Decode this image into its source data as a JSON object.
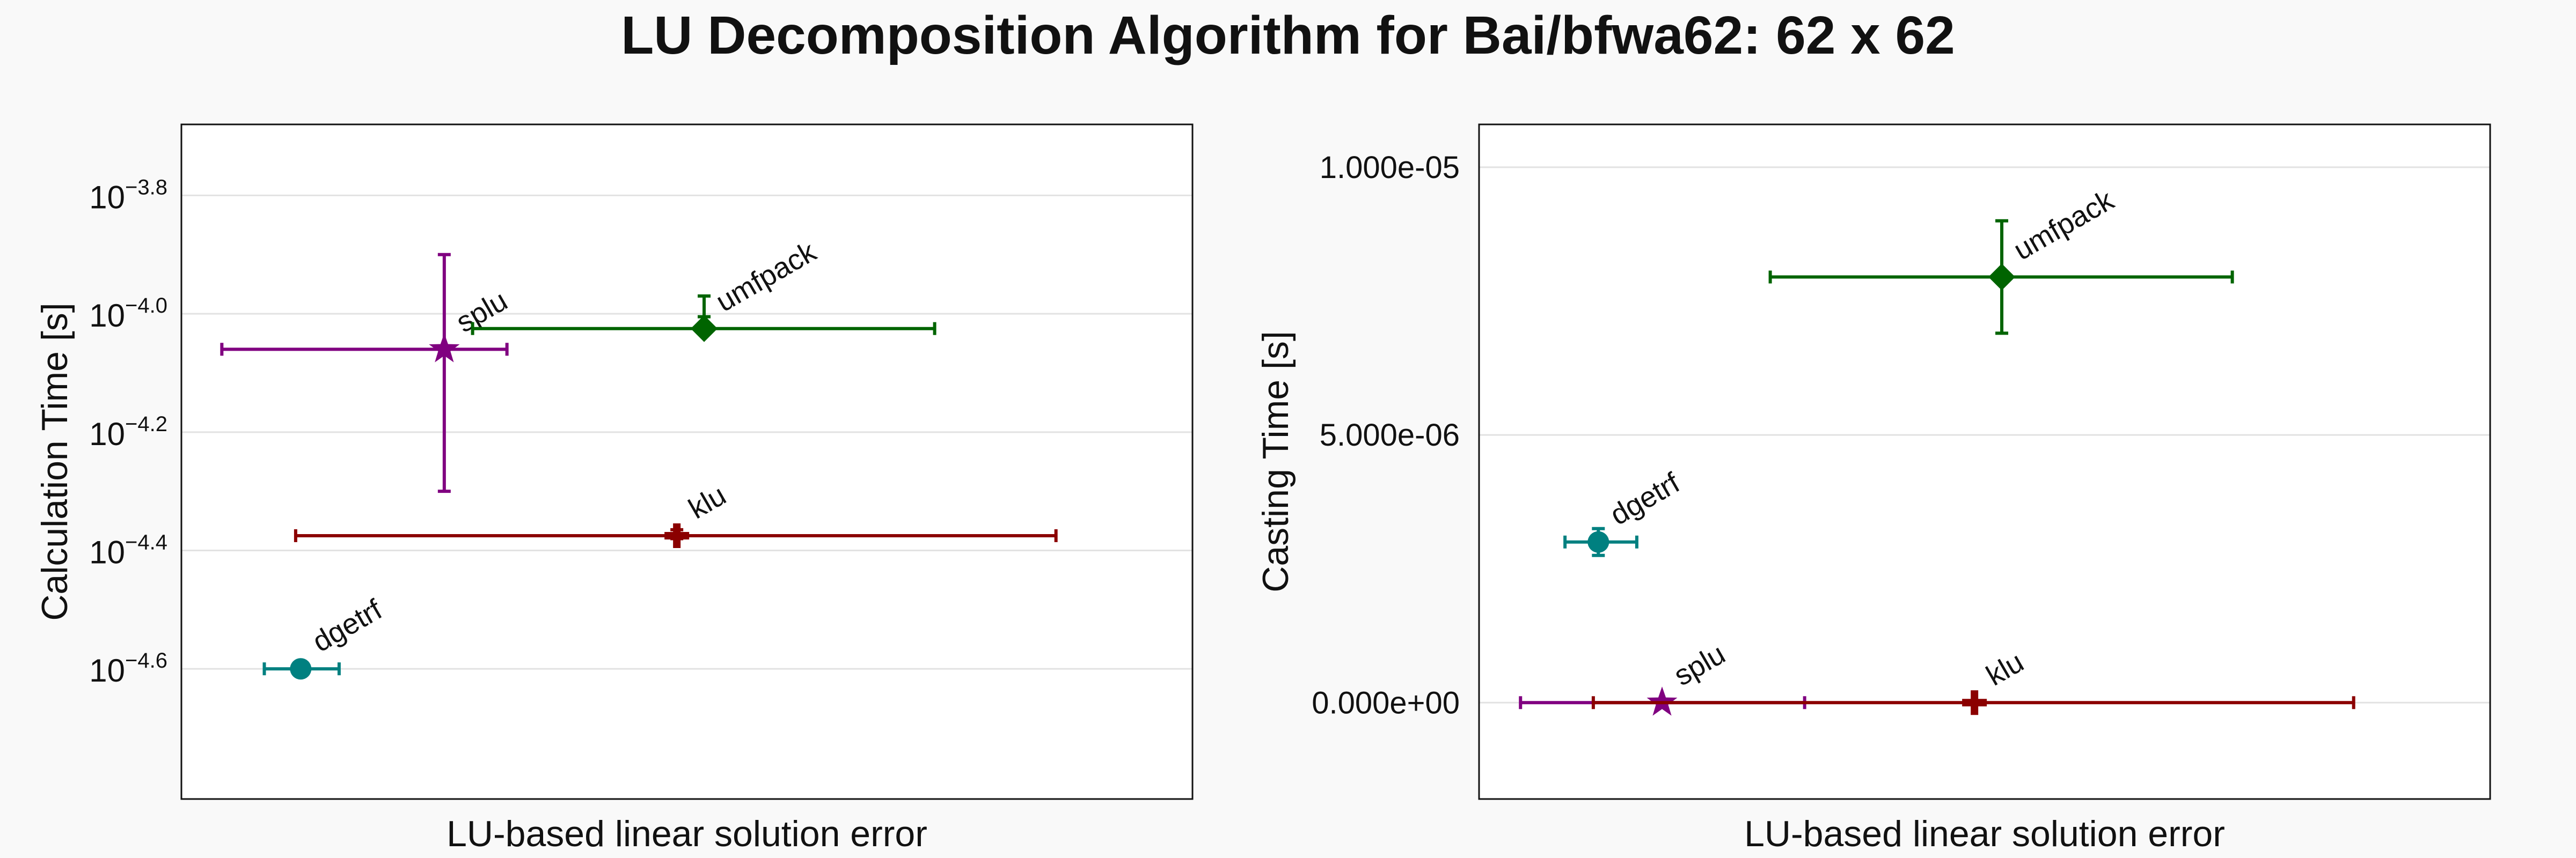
{
  "figure": {
    "title": "LU Decomposition Algorithm for Bai/bfwa62: 62 x 62",
    "background": "#f9f9f9"
  },
  "chart_data": [
    {
      "type": "scatter",
      "title": "",
      "xlabel": "LU-based linear solution error",
      "ylabel": "Calculation Time [s]",
      "y_scale": "log10",
      "ylim_log10": [
        -4.82,
        -3.68
      ],
      "y_ticks": [
        {
          "base": "10",
          "exp": "−3.8",
          "value_log10": -3.8
        },
        {
          "base": "10",
          "exp": "−4.0",
          "value_log10": -4.0
        },
        {
          "base": "10",
          "exp": "−4.2",
          "value_log10": -4.2
        },
        {
          "base": "10",
          "exp": "−4.4",
          "value_log10": -4.4
        },
        {
          "base": "10",
          "exp": "−4.6",
          "value_log10": -4.6
        }
      ],
      "x_ticks_shown": false,
      "xlim": [
        0,
        1
      ],
      "grid": "horizontal",
      "points": [
        {
          "label": "dgetrf",
          "color": "#008080",
          "marker": "circle",
          "x": 0.118,
          "x_err": [
            0.082,
            0.156
          ],
          "y_log10": -4.6,
          "y_err_log10": [
            -4.595,
            -4.605
          ]
        },
        {
          "label": "splu",
          "color": "#800080",
          "marker": "star",
          "x": 0.26,
          "x_err": [
            0.04,
            0.322
          ],
          "y_log10": -4.06,
          "y_err_log10": [
            -3.9,
            -4.3
          ]
        },
        {
          "label": "umfpack",
          "color": "#006400",
          "marker": "diamond",
          "x": 0.517,
          "x_err": [
            0.288,
            0.745
          ],
          "y_log10": -4.025,
          "y_err_log10": [
            -3.97,
            -4.005
          ]
        },
        {
          "label": "klu",
          "color": "#8b0000",
          "marker": "cross",
          "x": 0.49,
          "x_err": [
            0.113,
            0.865
          ],
          "y_log10": -4.375,
          "y_err_log10": [
            -4.365,
            -4.38
          ]
        }
      ]
    },
    {
      "type": "scatter",
      "title": "",
      "xlabel": "LU-based linear solution error",
      "ylabel": "Casting Time [s]",
      "y_scale": "linear",
      "ylim": [
        -1.8e-06,
        1.08e-05
      ],
      "y_ticks": [
        {
          "label": "0.000e+00",
          "value": 0
        },
        {
          "label": "5.000e-06",
          "value": 5e-06
        },
        {
          "label": "1.000e-05",
          "value": 1e-05
        }
      ],
      "x_ticks_shown": false,
      "xlim": [
        0,
        1
      ],
      "grid": "horizontal",
      "points": [
        {
          "label": "dgetrf",
          "color": "#008080",
          "marker": "circle",
          "x": 0.118,
          "x_err": [
            0.085,
            0.156
          ],
          "y": 3e-06,
          "y_err": [
            2.75e-06,
            3.25e-06
          ]
        },
        {
          "label": "splu",
          "color": "#800080",
          "marker": "star",
          "x": 0.181,
          "x_err": [
            0.041,
            0.322
          ],
          "y": 0.0,
          "y_err": [
            0.0,
            0.0
          ]
        },
        {
          "label": "umfpack",
          "color": "#006400",
          "marker": "diamond",
          "x": 0.517,
          "x_err": [
            0.288,
            0.745
          ],
          "y": 7.95e-06,
          "y_err": [
            6.9e-06,
            9e-06
          ]
        },
        {
          "label": "klu",
          "color": "#8b0000",
          "marker": "cross",
          "x": 0.49,
          "x_err": [
            0.113,
            0.865
          ],
          "y": 0.0,
          "y_err": [
            0.0,
            0.0
          ]
        }
      ]
    }
  ]
}
